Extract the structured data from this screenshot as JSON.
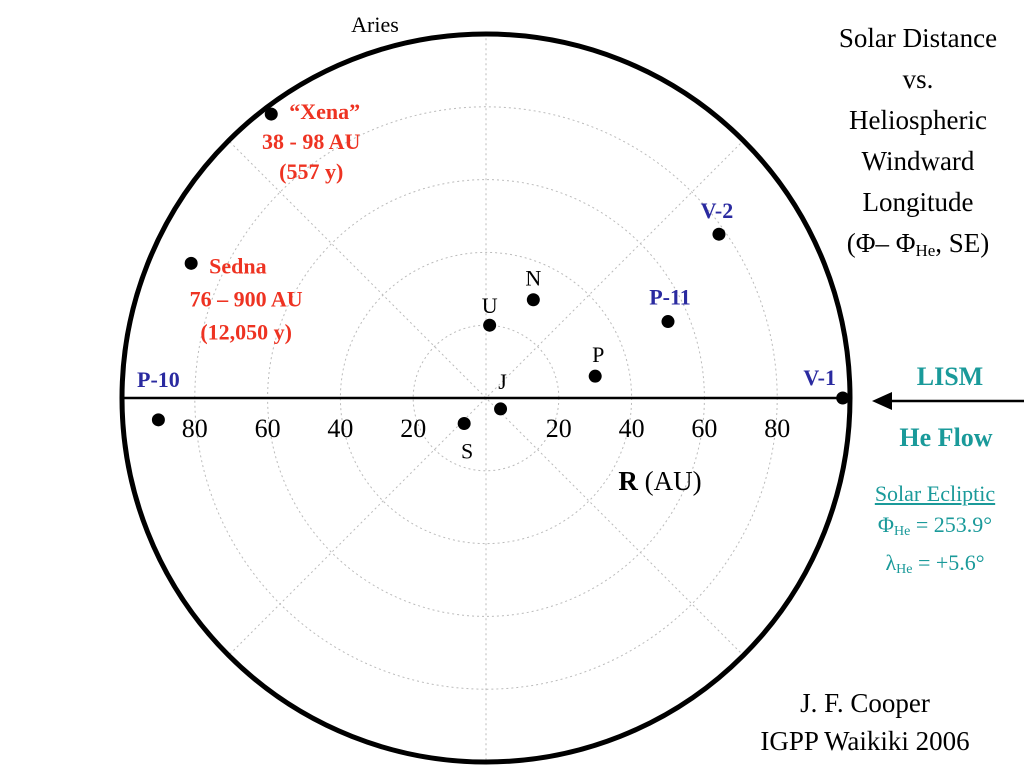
{
  "title_lines": [
    "Solar Distance",
    "vs.",
    "Heliospheric",
    "Windward",
    "Longitude"
  ],
  "title_formula": {
    "open": "(Φ– Φ",
    "subscript": "He",
    "close": ", SE)"
  },
  "top_label": "Aries",
  "flow": {
    "lism": "LISM",
    "he_flow": "He Flow"
  },
  "ecliptic": {
    "header": "Solar Ecliptic",
    "phi_symbol": "Φ",
    "phi_sub": "He",
    "phi_value": " = 253.9°",
    "lambda_symbol": "λ",
    "lambda_sub": "He",
    "lambda_value": " = +5.6°"
  },
  "credit": [
    "J. F. Cooper",
    "IGPP Waikiki 2006"
  ],
  "colors": {
    "red": "#ee3322",
    "blue": "#2a2aa0",
    "teal": "#1a9a9a",
    "grid": "#bbbbbb"
  },
  "chart_data": {
    "type": "scatter",
    "coordinate_system": "polar",
    "xlabel": "R (AU)",
    "r_max": 100,
    "grid_rings": [
      20,
      40,
      60,
      80,
      100
    ],
    "tick_labels_left": [
      "80",
      "60",
      "40",
      "20"
    ],
    "tick_labels_right": [
      "20",
      "40",
      "60",
      "80"
    ],
    "tick_values_left": [
      -80,
      -60,
      -40,
      -20
    ],
    "tick_values_right": [
      20,
      40,
      60,
      80
    ],
    "points": [
      {
        "id": "xena",
        "x": -59,
        "y": 78,
        "color": "red",
        "bold": true,
        "label_lines": [
          "“Xena”",
          "38 - 98 AU",
          "(557 y)"
        ]
      },
      {
        "id": "sedna",
        "x": -81,
        "y": 37,
        "color": "red",
        "bold": true,
        "label_lines": [
          "Sedna",
          "76 – 900 AU",
          "(12,050 y)"
        ]
      },
      {
        "id": "u",
        "x": 1,
        "y": 20,
        "color": "black",
        "bold": false,
        "label_lines": [
          "U"
        ]
      },
      {
        "id": "n",
        "x": 13,
        "y": 27,
        "color": "black",
        "bold": false,
        "label_lines": [
          "N"
        ]
      },
      {
        "id": "v2",
        "x": 64,
        "y": 45,
        "color": "blue",
        "bold": true,
        "label_lines": [
          "V-2"
        ]
      },
      {
        "id": "p11",
        "x": 50,
        "y": 21,
        "color": "blue",
        "bold": true,
        "label_lines": [
          "P-11"
        ]
      },
      {
        "id": "p",
        "x": 30,
        "y": 6,
        "color": "black",
        "bold": false,
        "label_lines": [
          "P"
        ]
      },
      {
        "id": "j",
        "x": 4,
        "y": -3,
        "color": "black",
        "bold": false,
        "label_lines": [
          "J"
        ]
      },
      {
        "id": "s",
        "x": -6,
        "y": -7,
        "color": "black",
        "bold": false,
        "label_lines": [
          "S"
        ]
      },
      {
        "id": "v1",
        "x": 98,
        "y": 0,
        "color": "blue",
        "bold": true,
        "label_lines": [
          "V-1"
        ]
      },
      {
        "id": "p10",
        "x": -90,
        "y": -6,
        "color": "blue",
        "bold": true,
        "label_lines": [
          "P-10"
        ]
      }
    ]
  }
}
